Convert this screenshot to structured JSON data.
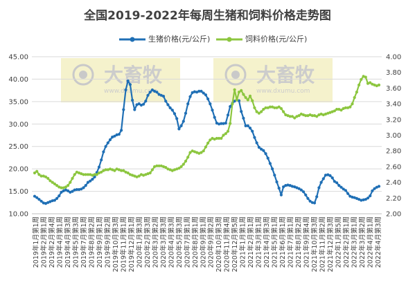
{
  "chart_data": {
    "type": "line",
    "title": "全国2019-2022年每周生猪和饲料价格走势图",
    "x_labels": [
      "2019年1月第1周",
      "2019年2月第1周",
      "2019年2月第4周",
      "2019年4月第1周",
      "2019年4月第3周",
      "2019年5月第3周",
      "2019年7月第1周",
      "2019年8月第2周",
      "2019年9月第1周",
      "2019年9月第2周",
      "2019年10月第3周",
      "2019年11月第1周",
      "2019年12月第1周",
      "2020年1月第3周",
      "2020年2月第3周",
      "2020年3月第2周",
      "2020年3月第3周",
      "2020年4月第3周",
      "2020年5月第3周",
      "2020年7月第1周",
      "2020年8月第1周",
      "2020年9月第1周",
      "2020年9月第2周",
      "2020年10月第3周",
      "2020年11月第4周",
      "2020年12月第5周",
      "2021年1月第1周",
      "2021年2月第1周",
      "2021年3月第1周",
      "2021年4月第3周",
      "2021年5月第1周",
      "2021年6月第1周",
      "2021年7月第1周",
      "2021年8月第2周",
      "2021年9月第4周",
      "2021年10月第3周",
      "2021年11月第2周",
      "2021年12月第3周",
      "2022年1月第5周",
      "2022年2月第1周",
      "2022年3月第1周",
      "2022年3月第2周",
      "2022年4月第1周",
      "2022年4月第3周"
    ],
    "y_left": {
      "min": 10,
      "max": 45,
      "step": 5,
      "ticks": [
        "10.00",
        "15.00",
        "20.00",
        "25.00",
        "30.00",
        "35.00",
        "40.00",
        "45.00"
      ]
    },
    "y_right": {
      "min": 2.0,
      "max": 4.0,
      "step": 0.2,
      "ticks": [
        "2.00",
        "2.20",
        "2.40",
        "2.60",
        "2.80",
        "3.00",
        "3.20",
        "3.40",
        "3.60",
        "3.80",
        "4.00"
      ]
    },
    "series": [
      {
        "name": "生猪价格(元/公斤)",
        "axis": "left",
        "color": "#1f6fb5",
        "marker": "circle",
        "values": [
          13.9,
          13.6,
          13.2,
          12.8,
          12.4,
          12.3,
          12.5,
          12.7,
          12.9,
          13.0,
          13.4,
          14.0,
          14.8,
          15.1,
          15.3,
          15.1,
          14.8,
          15.0,
          15.3,
          15.4,
          15.4,
          15.5,
          15.8,
          16.3,
          17.0,
          17.3,
          17.7,
          18.2,
          19.2,
          20.4,
          22.0,
          23.8,
          25.0,
          25.8,
          26.5,
          27.1,
          27.3,
          27.6,
          27.7,
          28.6,
          33.2,
          37.6,
          39.6,
          38.8,
          35.3,
          33.2,
          34.3,
          34.5,
          34.2,
          34.4,
          35.1,
          36.4,
          37.1,
          37.6,
          37.3,
          37.1,
          36.6,
          36.4,
          36.2,
          35.1,
          34.3,
          33.6,
          33.1,
          32.3,
          31.2,
          28.9,
          29.6,
          30.6,
          32.4,
          34.5,
          36.1,
          37.0,
          37.2,
          37.1,
          37.3,
          37.3,
          36.9,
          36.5,
          35.6,
          34.5,
          33.1,
          31.5,
          30.2,
          30.0,
          30.1,
          30.1,
          30.2,
          32.0,
          33.9,
          34.6,
          35.1,
          35.4,
          35.2,
          32.8,
          31.3,
          29.6,
          29.6,
          29.1,
          28.4,
          27.0,
          25.8,
          24.8,
          24.4,
          24.1,
          23.4,
          22.4,
          21.2,
          20.0,
          18.6,
          17.1,
          15.7,
          14.2,
          16.0,
          16.3,
          16.4,
          16.3,
          16.1,
          16.0,
          15.8,
          15.6,
          15.3,
          14.9,
          14.2,
          13.4,
          12.8,
          12.5,
          12.4,
          13.8,
          15.8,
          17.0,
          17.8,
          18.6,
          18.7,
          18.5,
          18.0,
          17.2,
          16.9,
          16.3,
          15.9,
          15.5,
          15.2,
          14.5,
          13.9,
          13.7,
          13.6,
          13.4,
          13.2,
          13.0,
          13.1,
          13.2,
          13.5,
          14.0,
          15.1,
          15.6,
          15.9,
          16.1
        ]
      },
      {
        "name": "饲料价格(元/公斤)",
        "axis": "right",
        "color": "#8cc63f",
        "marker": "circle",
        "values": [
          2.52,
          2.54,
          2.5,
          2.48,
          2.48,
          2.47,
          2.45,
          2.42,
          2.4,
          2.38,
          2.36,
          2.34,
          2.33,
          2.33,
          2.34,
          2.36,
          2.4,
          2.45,
          2.5,
          2.53,
          2.52,
          2.51,
          2.5,
          2.5,
          2.5,
          2.5,
          2.49,
          2.5,
          2.5,
          2.52,
          2.53,
          2.55,
          2.56,
          2.56,
          2.57,
          2.56,
          2.55,
          2.57,
          2.56,
          2.55,
          2.55,
          2.53,
          2.52,
          2.5,
          2.49,
          2.48,
          2.47,
          2.48,
          2.5,
          2.49,
          2.5,
          2.51,
          2.52,
          2.56,
          2.6,
          2.61,
          2.61,
          2.61,
          2.6,
          2.59,
          2.57,
          2.56,
          2.55,
          2.56,
          2.57,
          2.58,
          2.6,
          2.63,
          2.67,
          2.72,
          2.78,
          2.8,
          2.79,
          2.78,
          2.77,
          2.78,
          2.8,
          2.85,
          2.9,
          2.94,
          2.96,
          2.95,
          2.96,
          2.96,
          2.96,
          3.0,
          3.02,
          3.05,
          3.15,
          3.4,
          3.58,
          3.45,
          3.55,
          3.57,
          3.52,
          3.48,
          3.45,
          3.5,
          3.44,
          3.35,
          3.3,
          3.28,
          3.3,
          3.33,
          3.35,
          3.35,
          3.36,
          3.36,
          3.35,
          3.35,
          3.36,
          3.34,
          3.3,
          3.26,
          3.25,
          3.24,
          3.24,
          3.22,
          3.24,
          3.25,
          3.27,
          3.26,
          3.25,
          3.25,
          3.26,
          3.25,
          3.25,
          3.24,
          3.26,
          3.27,
          3.26,
          3.27,
          3.28,
          3.29,
          3.3,
          3.31,
          3.33,
          3.33,
          3.32,
          3.34,
          3.35,
          3.35,
          3.36,
          3.4,
          3.48,
          3.55,
          3.64,
          3.71,
          3.75,
          3.74,
          3.66,
          3.67,
          3.65,
          3.64,
          3.63,
          3.64
        ]
      }
    ],
    "grid": "horizontal",
    "legend": "top-center"
  },
  "watermark": {
    "text": "大畜牧",
    "sub": "www.dxumu.com"
  }
}
